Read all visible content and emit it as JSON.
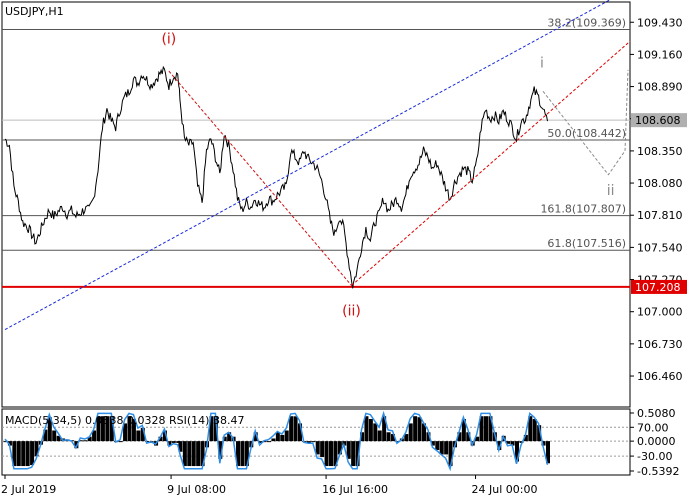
{
  "symbol_title": "USDJPY,H1",
  "colors": {
    "price_line": "#000000",
    "support_line": "#e00000",
    "support_label_bg": "#e00000",
    "current_label_bg": "#b0b0b0",
    "fib_line": "#555555",
    "upper_channel": "#1a2bd6",
    "lower_channel": "#e00000",
    "wave_red": "#d01010",
    "wave_gray": "#8a8a8a",
    "macd_hist": "#000000",
    "rsi_line": "#2f8fe8"
  },
  "chart_data": {
    "type": "line",
    "symbol": "USDJPY",
    "timeframe": "H1",
    "ylim": [
      106.2,
      109.6
    ],
    "y_ticks": [
      "109.430",
      "109.160",
      "108.890",
      "108.620",
      "108.350",
      "108.080",
      "107.810",
      "107.540",
      "107.270",
      "107.000",
      "106.730",
      "106.460"
    ],
    "x_ticks": [
      "2 Jul 2019",
      "9 Jul 08:00",
      "16 Jul 16:00",
      "24 Jul 00:00"
    ],
    "price_path": [
      [
        0,
        108.45
      ],
      [
        4,
        108.4
      ],
      [
        8,
        108.05
      ],
      [
        12,
        107.92
      ],
      [
        16,
        107.75
      ],
      [
        20,
        107.72
      ],
      [
        24,
        107.65
      ],
      [
        28,
        107.58
      ],
      [
        32,
        107.68
      ],
      [
        36,
        107.78
      ],
      [
        40,
        107.85
      ],
      [
        44,
        107.8
      ],
      [
        48,
        107.84
      ],
      [
        52,
        107.88
      ],
      [
        56,
        107.82
      ],
      [
        60,
        107.85
      ],
      [
        64,
        107.8
      ],
      [
        68,
        107.83
      ],
      [
        72,
        107.86
      ],
      [
        76,
        107.85
      ],
      [
        80,
        107.95
      ],
      [
        84,
        108.2
      ],
      [
        88,
        108.55
      ],
      [
        92,
        108.7
      ],
      [
        96,
        108.6
      ],
      [
        100,
        108.55
      ],
      [
        104,
        108.7
      ],
      [
        108,
        108.8
      ],
      [
        112,
        108.85
      ],
      [
        116,
        108.95
      ],
      [
        120,
        108.92
      ],
      [
        124,
        109.0
      ],
      [
        128,
        108.95
      ],
      [
        132,
        108.9
      ],
      [
        136,
        108.95
      ],
      [
        140,
        109.0
      ],
      [
        144,
        109.02
      ],
      [
        148,
        108.9
      ],
      [
        152,
        108.98
      ],
      [
        156,
        109.0
      ],
      [
        158,
        108.78
      ],
      [
        162,
        108.45
      ],
      [
        166,
        108.4
      ],
      [
        170,
        108.42
      ],
      [
        174,
        108.05
      ],
      [
        178,
        107.92
      ],
      [
        182,
        108.35
      ],
      [
        186,
        108.45
      ],
      [
        190,
        108.3
      ],
      [
        194,
        108.15
      ],
      [
        198,
        108.5
      ],
      [
        202,
        108.4
      ],
      [
        206,
        108.2
      ],
      [
        210,
        107.95
      ],
      [
        214,
        107.85
      ],
      [
        218,
        107.92
      ],
      [
        222,
        107.88
      ],
      [
        226,
        107.95
      ],
      [
        230,
        107.9
      ],
      [
        234,
        107.88
      ],
      [
        238,
        107.95
      ],
      [
        242,
        107.93
      ],
      [
        246,
        107.98
      ],
      [
        250,
        108.02
      ],
      [
        254,
        108.05
      ],
      [
        258,
        108.35
      ],
      [
        262,
        108.3
      ],
      [
        266,
        108.25
      ],
      [
        270,
        108.35
      ],
      [
        274,
        108.28
      ],
      [
        278,
        108.25
      ],
      [
        282,
        108.2
      ],
      [
        286,
        108.1
      ],
      [
        290,
        107.95
      ],
      [
        294,
        107.75
      ],
      [
        298,
        107.65
      ],
      [
        302,
        107.8
      ],
      [
        306,
        107.7
      ],
      [
        310,
        107.45
      ],
      [
        314,
        107.22
      ],
      [
        318,
        107.35
      ],
      [
        322,
        107.55
      ],
      [
        326,
        107.7
      ],
      [
        330,
        107.6
      ],
      [
        334,
        107.75
      ],
      [
        338,
        107.82
      ],
      [
        342,
        107.95
      ],
      [
        346,
        107.85
      ],
      [
        350,
        107.9
      ],
      [
        354,
        107.95
      ],
      [
        358,
        107.88
      ],
      [
        362,
        107.98
      ],
      [
        366,
        108.15
      ],
      [
        370,
        108.2
      ],
      [
        374,
        108.25
      ],
      [
        378,
        108.35
      ],
      [
        382,
        108.3
      ],
      [
        386,
        108.2
      ],
      [
        390,
        108.25
      ],
      [
        394,
        108.15
      ],
      [
        398,
        108.05
      ],
      [
        402,
        107.95
      ],
      [
        406,
        108.08
      ],
      [
        410,
        108.15
      ],
      [
        414,
        108.2
      ],
      [
        418,
        108.18
      ],
      [
        422,
        108.1
      ],
      [
        426,
        108.25
      ],
      [
        430,
        108.55
      ],
      [
        434,
        108.7
      ],
      [
        438,
        108.62
      ],
      [
        442,
        108.65
      ],
      [
        446,
        108.6
      ],
      [
        450,
        108.68
      ],
      [
        454,
        108.62
      ],
      [
        458,
        108.55
      ],
      [
        462,
        108.45
      ],
      [
        466,
        108.6
      ],
      [
        470,
        108.62
      ],
      [
        474,
        108.75
      ],
      [
        478,
        108.85
      ],
      [
        482,
        108.8
      ],
      [
        486,
        108.7
      ],
      [
        490,
        108.6
      ]
    ],
    "wave_labels": [
      {
        "text": "(i)",
        "value": 109.25,
        "x_index": 148
      },
      {
        "text": "(ii)",
        "value": 106.97,
        "x_index": 313
      },
      {
        "text": "i",
        "value": 109.05,
        "x_index": 485
      },
      {
        "text": "ii",
        "value": 107.98,
        "x_index": 547
      }
    ],
    "fib_levels": [
      {
        "label": "38.2(109.369)",
        "value": 109.369
      },
      {
        "label": "50.0(108.442)",
        "value": 108.442
      },
      {
        "label": "161.8(107.807)",
        "value": 107.807
      },
      {
        "label": "61.8(107.516)",
        "value": 107.516
      }
    ],
    "reference_lines": [
      {
        "value": 108.608,
        "label": "108.608"
      }
    ],
    "support_line": {
      "value": 107.208,
      "label": "107.208"
    },
    "current_price": {
      "value": 108.608,
      "label": "108.608"
    },
    "indicator": {
      "title": "MACD(5,34,5) 0.0338 0.0328 RSI(14) 38.47",
      "macd_ticks": [
        "0.5080",
        "0.0000",
        "-0.5392"
      ],
      "rsi_ticks": [
        "70.00",
        "-30.00"
      ],
      "ylim_macd": [
        -0.5392,
        0.508
      ]
    }
  }
}
